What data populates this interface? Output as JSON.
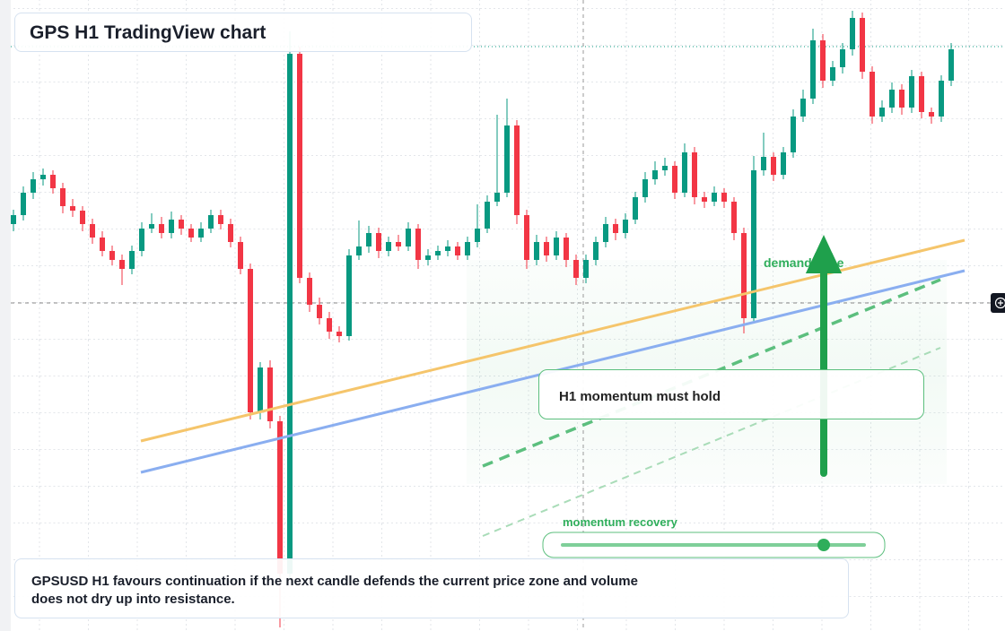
{
  "chart_data": {
    "type": "candlestick",
    "title": "GPS H1 TradingView chart",
    "annotations": [
      "demand zone",
      "H1 momentum must hold",
      "momentum recovery"
    ],
    "caption": "GPSUSD H1 favours continuation if the next candle defends the current price zone and volume does not dry up into resistance.",
    "up_color": "#089981",
    "down_color": "#f23645",
    "ylim": [
      0,
      704
    ],
    "ohlc": [
      [
        454,
        470,
        446,
        464
      ],
      [
        464,
        496,
        458,
        489
      ],
      [
        489,
        512,
        482,
        504
      ],
      [
        504,
        516,
        497,
        509
      ],
      [
        509,
        514,
        488,
        494
      ],
      [
        494,
        500,
        466,
        474
      ],
      [
        474,
        482,
        462,
        469
      ],
      [
        469,
        474,
        446,
        454
      ],
      [
        454,
        460,
        432,
        439
      ],
      [
        439,
        446,
        418,
        424
      ],
      [
        424,
        430,
        408,
        414
      ],
      [
        414,
        420,
        386,
        404
      ],
      [
        404,
        430,
        398,
        424
      ],
      [
        424,
        456,
        418,
        449
      ],
      [
        449,
        466,
        444,
        454
      ],
      [
        454,
        462,
        438,
        444
      ],
      [
        444,
        468,
        438,
        459
      ],
      [
        459,
        464,
        442,
        449
      ],
      [
        449,
        454,
        434,
        439
      ],
      [
        439,
        456,
        434,
        449
      ],
      [
        449,
        470,
        444,
        464
      ],
      [
        464,
        470,
        448,
        454
      ],
      [
        454,
        460,
        428,
        434
      ],
      [
        434,
        440,
        398,
        404
      ],
      [
        404,
        410,
        236,
        244
      ],
      [
        244,
        300,
        236,
        294
      ],
      [
        294,
        302,
        226,
        234
      ],
      [
        234,
        240,
        4,
        64
      ],
      [
        64,
        669,
        58,
        644
      ],
      [
        644,
        652,
        388,
        394
      ],
      [
        394,
        400,
        356,
        364
      ],
      [
        364,
        372,
        342,
        349
      ],
      [
        349,
        356,
        326,
        334
      ],
      [
        334,
        340,
        322,
        329
      ],
      [
        329,
        426,
        324,
        419
      ],
      [
        419,
        458,
        414,
        429
      ],
      [
        429,
        452,
        422,
        444
      ],
      [
        444,
        450,
        416,
        424
      ],
      [
        424,
        440,
        418,
        434
      ],
      [
        434,
        442,
        424,
        429
      ],
      [
        429,
        456,
        424,
        449
      ],
      [
        449,
        454,
        404,
        414
      ],
      [
        414,
        426,
        408,
        419
      ],
      [
        419,
        430,
        414,
        424
      ],
      [
        424,
        436,
        418,
        429
      ],
      [
        429,
        434,
        414,
        419
      ],
      [
        419,
        440,
        414,
        434
      ],
      [
        434,
        476,
        428,
        449
      ],
      [
        449,
        486,
        444,
        479
      ],
      [
        479,
        576,
        474,
        489
      ],
      [
        489,
        594,
        484,
        564
      ],
      [
        564,
        570,
        454,
        464
      ],
      [
        464,
        470,
        404,
        414
      ],
      [
        414,
        442,
        408,
        434
      ],
      [
        434,
        440,
        412,
        419
      ],
      [
        419,
        446,
        414,
        439
      ],
      [
        439,
        444,
        406,
        414
      ],
      [
        414,
        420,
        386,
        394
      ],
      [
        394,
        420,
        388,
        414
      ],
      [
        414,
        440,
        408,
        434
      ],
      [
        434,
        462,
        428,
        454
      ],
      [
        454,
        460,
        436,
        444
      ],
      [
        444,
        466,
        438,
        459
      ],
      [
        459,
        490,
        454,
        484
      ],
      [
        484,
        512,
        478,
        504
      ],
      [
        504,
        524,
        498,
        514
      ],
      [
        514,
        528,
        508,
        519
      ],
      [
        519,
        524,
        482,
        489
      ],
      [
        489,
        544,
        484,
        534
      ],
      [
        534,
        540,
        476,
        484
      ],
      [
        484,
        490,
        472,
        479
      ],
      [
        479,
        496,
        474,
        489
      ],
      [
        489,
        494,
        472,
        479
      ],
      [
        479,
        484,
        436,
        444
      ],
      [
        444,
        450,
        332,
        349
      ],
      [
        349,
        530,
        344,
        514
      ],
      [
        514,
        556,
        508,
        529
      ],
      [
        529,
        534,
        502,
        509
      ],
      [
        509,
        540,
        504,
        534
      ],
      [
        534,
        582,
        528,
        574
      ],
      [
        574,
        604,
        568,
        594
      ],
      [
        594,
        672,
        588,
        659
      ],
      [
        659,
        666,
        606,
        614
      ],
      [
        614,
        636,
        608,
        629
      ],
      [
        629,
        656,
        622,
        649
      ],
      [
        649,
        692,
        642,
        684
      ],
      [
        684,
        690,
        616,
        624
      ],
      [
        624,
        630,
        566,
        574
      ],
      [
        574,
        592,
        568,
        584
      ],
      [
        584,
        612,
        578,
        604
      ],
      [
        604,
        610,
        576,
        584
      ],
      [
        584,
        626,
        578,
        619
      ],
      [
        619,
        624,
        572,
        579
      ],
      [
        579,
        584,
        566,
        574
      ],
      [
        574,
        620,
        568,
        614
      ],
      [
        614,
        656,
        608,
        649
      ]
    ]
  }
}
